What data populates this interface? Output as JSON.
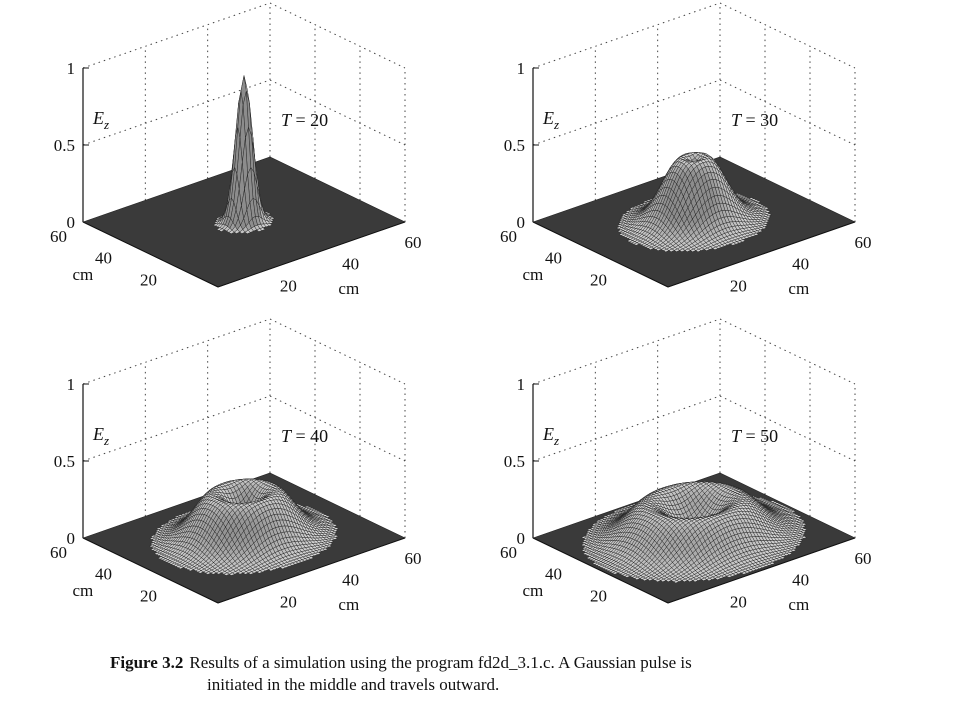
{
  "chart_data": [
    {
      "type": "surface",
      "time_label": "T = 20",
      "T": 20,
      "zlabel": "E",
      "zlabel_sub": "z",
      "xlabel": "cm",
      "ylabel": "cm",
      "z_ticks": [
        "1",
        "0.5",
        "0"
      ],
      "x_ticks": [
        "20",
        "40",
        "60"
      ],
      "y_ticks": [
        "20",
        "40",
        "60"
      ],
      "zlim": [
        0,
        1
      ],
      "xlim": [
        0,
        60
      ],
      "ylim": [
        0,
        60
      ],
      "pulse_center": [
        30,
        30
      ],
      "ring_radius": 0,
      "peak_height": 0.95,
      "pulse_width": 2.2
    },
    {
      "type": "surface",
      "time_label": "T = 30",
      "T": 30,
      "zlabel": "E",
      "zlabel_sub": "z",
      "xlabel": "cm",
      "ylabel": "cm",
      "z_ticks": [
        "1",
        "0.5",
        "0"
      ],
      "x_ticks": [
        "20",
        "40",
        "60"
      ],
      "y_ticks": [
        "20",
        "40",
        "60"
      ],
      "zlim": [
        0,
        1
      ],
      "xlim": [
        0,
        60
      ],
      "ylim": [
        0,
        60
      ],
      "pulse_center": [
        30,
        30
      ],
      "ring_radius": 3,
      "peak_height": 0.42,
      "pulse_width": 5.5
    },
    {
      "type": "surface",
      "time_label": "T = 40",
      "T": 40,
      "zlabel": "E",
      "zlabel_sub": "z",
      "xlabel": "cm",
      "ylabel": "cm",
      "z_ticks": [
        "1",
        "0.5",
        "0"
      ],
      "x_ticks": [
        "20",
        "40",
        "60"
      ],
      "y_ticks": [
        "20",
        "40",
        "60"
      ],
      "zlim": [
        0,
        1
      ],
      "xlim": [
        0,
        60
      ],
      "ylim": [
        0,
        60
      ],
      "pulse_center": [
        30,
        30
      ],
      "ring_radius": 8,
      "peak_height": 0.3,
      "pulse_width": 5.5
    },
    {
      "type": "surface",
      "time_label": "T = 50",
      "T": 50,
      "zlabel": "E",
      "zlabel_sub": "z",
      "xlabel": "cm",
      "ylabel": "cm",
      "z_ticks": [
        "1",
        "0.5",
        "0"
      ],
      "x_ticks": [
        "20",
        "40",
        "60"
      ],
      "y_ticks": [
        "20",
        "40",
        "60"
      ],
      "zlim": [
        0,
        1
      ],
      "xlim": [
        0,
        60
      ],
      "ylim": [
        0,
        60
      ],
      "pulse_center": [
        30,
        30
      ],
      "ring_radius": 12,
      "peak_height": 0.24,
      "pulse_width": 6
    }
  ],
  "caption": {
    "label": "Figure 3.2",
    "line1": "Results of a simulation using the program fd2d_3.1.c.  A Gaussian pulse is",
    "line2": "initiated in the middle and travels outward."
  }
}
